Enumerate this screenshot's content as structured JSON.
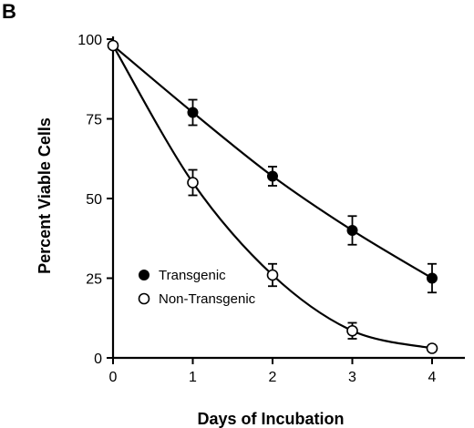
{
  "panel_label": "B",
  "chart_data": {
    "type": "line",
    "title": "",
    "xlabel": "Days of Incubation",
    "ylabel": "Percent Viable Cells",
    "xlim": [
      0,
      4.4
    ],
    "ylim": [
      0,
      100
    ],
    "x_ticks": [
      0,
      1,
      2,
      3,
      4
    ],
    "y_ticks": [
      0,
      25,
      50,
      75,
      100
    ],
    "x_tick_labels": [
      "0",
      "1",
      "2",
      "3",
      "4"
    ],
    "y_tick_labels": [
      "0",
      "25",
      "50",
      "75",
      "100"
    ],
    "grid": false,
    "legend_position": "lower-left",
    "series": [
      {
        "name": "Transgenic",
        "marker": "filled-circle",
        "color": "#000000",
        "x": [
          0,
          1,
          2,
          3,
          4
        ],
        "y": [
          98,
          77,
          57,
          40,
          25
        ],
        "error": [
          0,
          4,
          3,
          4.5,
          4.5
        ]
      },
      {
        "name": "Non-Transgenic",
        "marker": "open-circle",
        "color": "#000000",
        "x": [
          0,
          1,
          2,
          3,
          4
        ],
        "y": [
          98,
          55,
          26,
          8.5,
          3
        ],
        "error": [
          0,
          4,
          3.5,
          2.5,
          0
        ]
      }
    ]
  }
}
